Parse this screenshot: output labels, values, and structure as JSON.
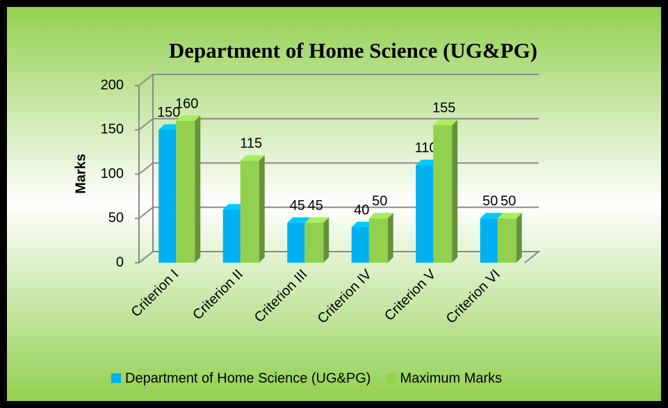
{
  "chart_data": {
    "type": "bar3d",
    "title": "Department of Home Science (UG&PG)",
    "y_label": "Marks",
    "categories": [
      "Criterion I",
      "Criterion II",
      "Criterion III",
      "Criterion IV",
      "Criterion V",
      "Criterion VI"
    ],
    "series": [
      {
        "name": "Department of Home Science (UG&PG)",
        "color": "#00b0f0",
        "values": [
          150,
          60,
          45,
          40,
          110,
          50
        ],
        "value_labels": [
          "150",
          null,
          "45",
          "40",
          "110",
          "50"
        ]
      },
      {
        "name": "Maximum Marks",
        "color": "#92d050",
        "values": [
          160,
          115,
          45,
          50,
          155,
          50
        ],
        "value_labels": [
          "160",
          "115",
          "45",
          "50",
          "155",
          "50"
        ]
      }
    ],
    "ylim": [
      0,
      200
    ],
    "yticks": [
      0,
      50,
      100,
      150,
      200
    ],
    "grid": true,
    "legend": "bottom"
  }
}
